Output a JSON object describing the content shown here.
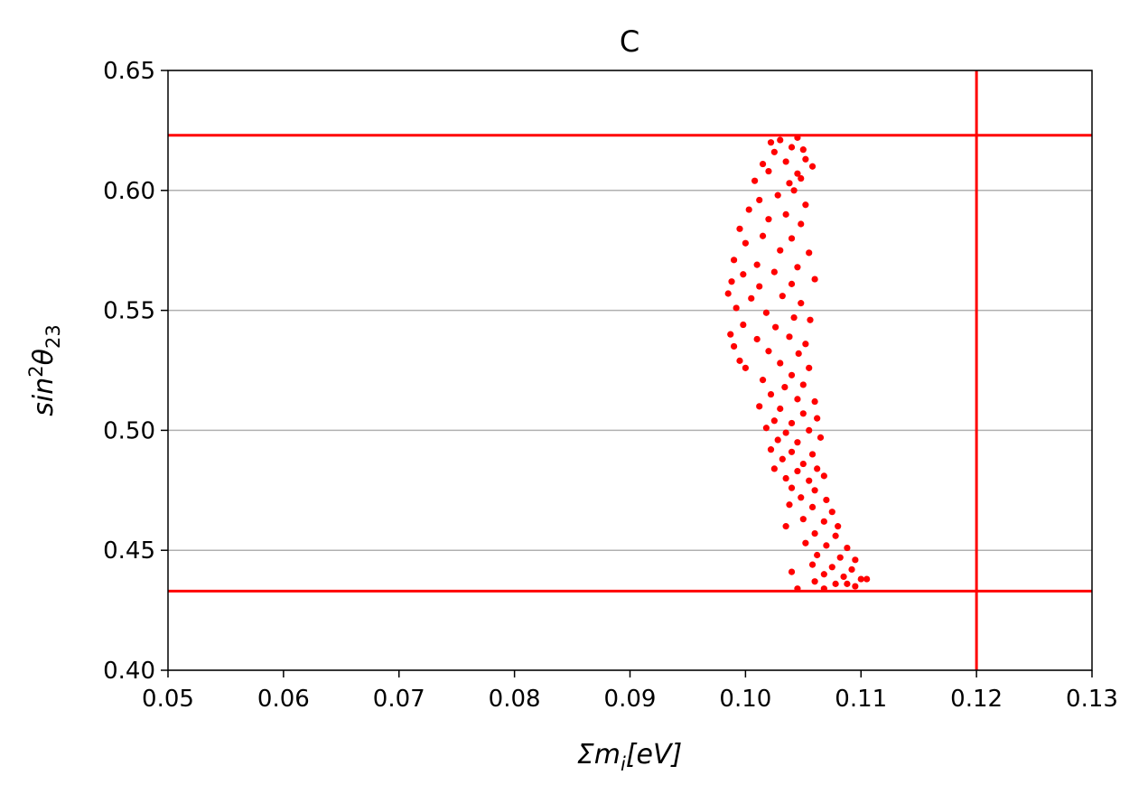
{
  "chart_data": {
    "type": "scatter",
    "title": "C",
    "xlabel": [
      "Σm",
      "i",
      "[eV]"
    ],
    "ylabel": [
      "sin",
      "2",
      "θ",
      "23"
    ],
    "color": "#ff0000",
    "x": [
      0.1022,
      0.103,
      0.1045,
      0.105,
      0.104,
      0.1025,
      0.1052,
      0.1015,
      0.1035,
      0.1058,
      0.102,
      0.1045,
      0.1008,
      0.1038,
      0.1048,
      0.1028,
      0.1042,
      0.1012,
      0.1052,
      0.1003,
      0.1035,
      0.102,
      0.1048,
      0.0995,
      0.1015,
      0.104,
      0.1,
      0.103,
      0.1055,
      0.099,
      0.101,
      0.1045,
      0.0998,
      0.1025,
      0.106,
      0.0988,
      0.1012,
      0.104,
      0.0985,
      0.1005,
      0.1032,
      0.1048,
      0.0992,
      0.1018,
      0.1042,
      0.1056,
      0.0998,
      0.1026,
      0.0987,
      0.101,
      0.1038,
      0.1052,
      0.099,
      0.102,
      0.1046,
      0.0995,
      0.103,
      0.1055,
      0.1,
      0.104,
      0.1015,
      0.1034,
      0.105,
      0.1022,
      0.1045,
      0.106,
      0.1012,
      0.103,
      0.105,
      0.1025,
      0.104,
      0.1062,
      0.1018,
      0.1035,
      0.1055,
      0.1028,
      0.1045,
      0.1065,
      0.1022,
      0.104,
      0.1058,
      0.1032,
      0.105,
      0.1025,
      0.1045,
      0.1062,
      0.1035,
      0.1055,
      0.1068,
      0.104,
      0.106,
      0.1048,
      0.107,
      0.1038,
      0.1058,
      0.1075,
      0.105,
      0.1068,
      0.108,
      0.1035,
      0.106,
      0.1078,
      0.1052,
      0.107,
      0.1088,
      0.1062,
      0.1082,
      0.1095,
      0.1058,
      0.1075,
      0.1092,
      0.104,
      0.1068,
      0.1085,
      0.11,
      0.106,
      0.1078,
      0.1095,
      0.1105,
      0.1045,
      0.1068,
      0.1088
    ],
    "values": [
      0.62,
      0.621,
      0.622,
      0.617,
      0.618,
      0.616,
      0.613,
      0.611,
      0.612,
      0.61,
      0.608,
      0.607,
      0.604,
      0.603,
      0.605,
      0.598,
      0.6,
      0.596,
      0.594,
      0.592,
      0.59,
      0.588,
      0.586,
      0.584,
      0.581,
      0.58,
      0.578,
      0.575,
      0.574,
      0.571,
      0.569,
      0.568,
      0.565,
      0.566,
      0.563,
      0.562,
      0.56,
      0.561,
      0.557,
      0.555,
      0.556,
      0.553,
      0.551,
      0.549,
      0.547,
      0.546,
      0.544,
      0.543,
      0.54,
      0.538,
      0.539,
      0.536,
      0.535,
      0.533,
      0.532,
      0.529,
      0.528,
      0.526,
      0.526,
      0.523,
      0.521,
      0.518,
      0.519,
      0.515,
      0.513,
      0.512,
      0.51,
      0.509,
      0.507,
      0.504,
      0.503,
      0.505,
      0.501,
      0.499,
      0.5,
      0.496,
      0.495,
      0.497,
      0.492,
      0.491,
      0.49,
      0.488,
      0.486,
      0.484,
      0.483,
      0.484,
      0.48,
      0.479,
      0.481,
      0.476,
      0.475,
      0.472,
      0.471,
      0.469,
      0.468,
      0.466,
      0.463,
      0.462,
      0.46,
      0.46,
      0.457,
      0.456,
      0.453,
      0.452,
      0.451,
      0.448,
      0.447,
      0.446,
      0.444,
      0.443,
      0.442,
      0.441,
      0.44,
      0.439,
      0.438,
      0.437,
      0.436,
      0.435,
      0.438,
      0.434,
      0.434,
      0.436
    ],
    "xlim": [
      0.05,
      0.13
    ],
    "ylim": [
      0.4,
      0.65
    ],
    "xticks": [
      0.05,
      0.06,
      0.07,
      0.08,
      0.09,
      {
        "value": 0.1,
        "label": "0.10"
      },
      0.11,
      0.12,
      0.13
    ],
    "yticks": [
      {
        "value": 0.4,
        "label": "0.40"
      },
      0.45,
      {
        "value": 0.5,
        "label": "0.50"
      },
      0.55,
      {
        "value": 0.6,
        "label": "0.60"
      },
      0.65
    ],
    "grid": "y",
    "hlines": [
      0.623,
      0.433
    ],
    "vlines": [
      0.12
    ],
    "line_color": "#ff0000"
  }
}
